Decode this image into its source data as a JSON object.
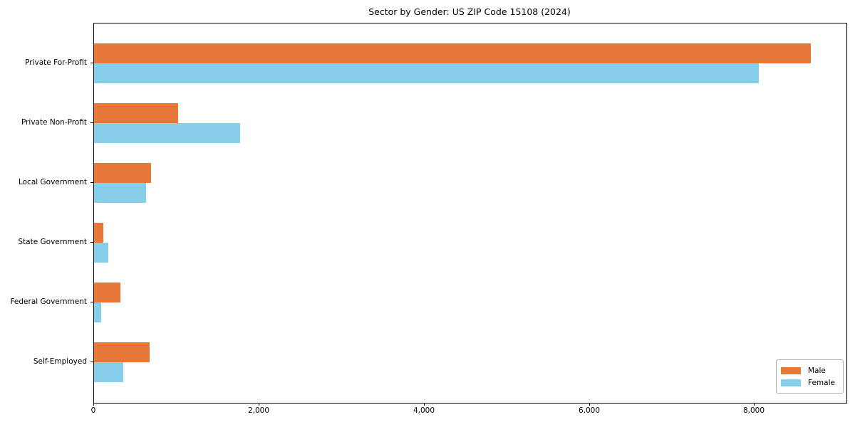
{
  "title": "Sector by Gender: US ZIP Code 15108 (2024)",
  "chart_data": {
    "type": "bar",
    "orientation": "horizontal",
    "title": "Sector by Gender: US ZIP Code 15108 (2024)",
    "categories": [
      "Private For-Profit",
      "Private Non-Profit",
      "Local Government",
      "State Government",
      "Federal Government",
      "Self-Employed"
    ],
    "series": [
      {
        "name": "Male",
        "color": "#E87839",
        "values": [
          8670,
          1020,
          690,
          110,
          320,
          675
        ]
      },
      {
        "name": "Female",
        "color": "#87CEEB",
        "values": [
          8040,
          1770,
          630,
          170,
          90,
          350
        ]
      }
    ],
    "xlim": [
      0,
      9100
    ],
    "xticks": [
      0,
      2000,
      4000,
      6000,
      8000
    ],
    "xtick_labels": [
      "0",
      "2,000",
      "4,000",
      "6,000",
      "8,000"
    ],
    "xlabel": "",
    "ylabel": "",
    "grid": false,
    "legend_position": "lower right"
  },
  "legend": {
    "items": [
      {
        "label": "Male",
        "color": "#E87839"
      },
      {
        "label": "Female",
        "color": "#87CEEB"
      }
    ]
  }
}
